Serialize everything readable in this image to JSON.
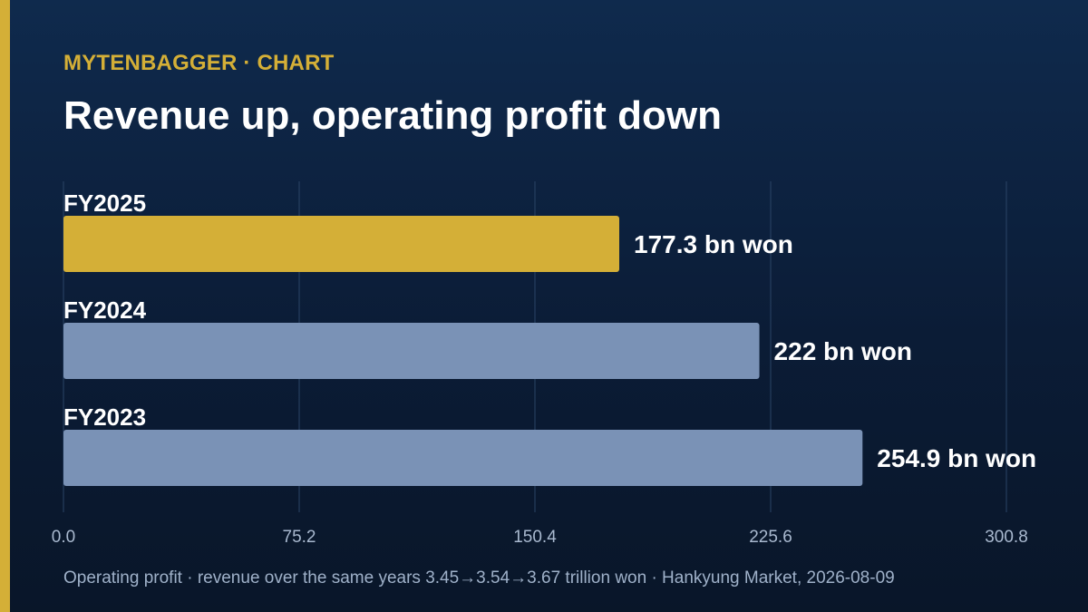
{
  "header": {
    "kicker": "MYTENBAGGER · CHART",
    "title": "Revenue up, operating profit down"
  },
  "footer": {
    "note": "Operating profit · revenue over the same years 3.45→3.54→3.67 trillion won · Hankyung Market, 2026-08-09"
  },
  "colors": {
    "accent": "#d4af37",
    "bar_highlight": "#d4af37",
    "bar_default": "#7a92b6",
    "grid": "#2a4466",
    "label": "#ffffff",
    "tick": "#a9b9cf"
  },
  "chart_data": {
    "type": "bar",
    "orientation": "horizontal",
    "categories": [
      "FY2025",
      "FY2024",
      "FY2023"
    ],
    "values": [
      177.3,
      222,
      254.9
    ],
    "value_labels": [
      "177.3 bn won",
      "222 bn won",
      "254.9 bn won"
    ],
    "highlight_index": 0,
    "xlim": [
      0,
      300.8
    ],
    "xticks": [
      0,
      75.2,
      150.4,
      225.6,
      300.8
    ],
    "xtick_labels": [
      "0.0",
      "75.2",
      "150.4",
      "225.6",
      "300.8"
    ],
    "grid": true
  }
}
